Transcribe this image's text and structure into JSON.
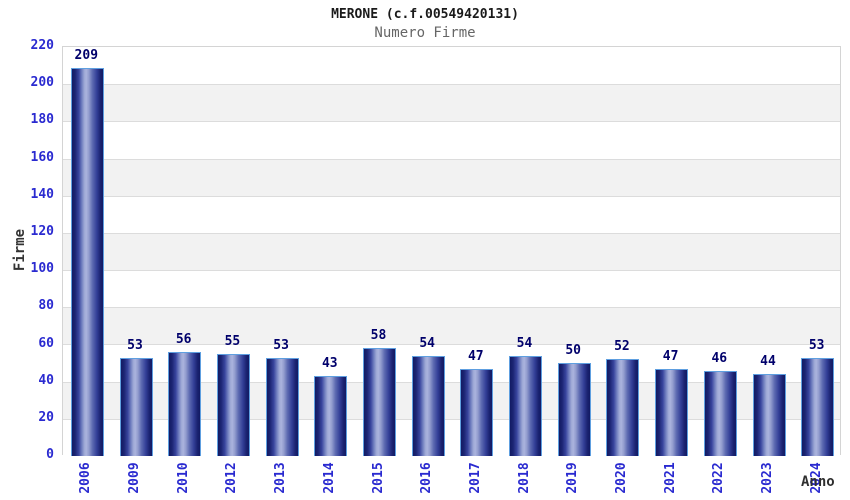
{
  "header": {
    "title": "MERONE (c.f.00549420131)",
    "subtitle": "Numero Firme"
  },
  "chart_data": {
    "type": "bar",
    "title": "MERONE (c.f.00549420131)",
    "subtitle": "Numero Firme",
    "xlabel": "Anno",
    "ylabel": "Firme",
    "categories": [
      "2006",
      "2009",
      "2010",
      "2012",
      "2013",
      "2014",
      "2015",
      "2016",
      "2017",
      "2018",
      "2019",
      "2020",
      "2021",
      "2022",
      "2023",
      "2024"
    ],
    "values": [
      209,
      53,
      56,
      55,
      53,
      43,
      58,
      54,
      47,
      54,
      50,
      52,
      47,
      46,
      44,
      53
    ],
    "ylim": [
      0,
      220
    ],
    "ytick_step": 20,
    "grid": "horizontal gridlines every 20 with alternating white/gray bands",
    "legend_position": "none"
  },
  "colors": {
    "tick_label_blue": "#2a2ad0",
    "value_label_navy": "#00006b",
    "bar_dark_edge": "#121a63",
    "bar_highlight": "#aab3dd",
    "bar_outline_lightblue": "#5e9fe0",
    "band_gray": "#f2f2f2",
    "grid_line": "#dcdcdc",
    "plot_border": "#d4d4d4",
    "title_color": "#1a1a1a",
    "subtitle_color": "#666666",
    "axis_title_color": "#333333",
    "background": "#ffffff"
  }
}
